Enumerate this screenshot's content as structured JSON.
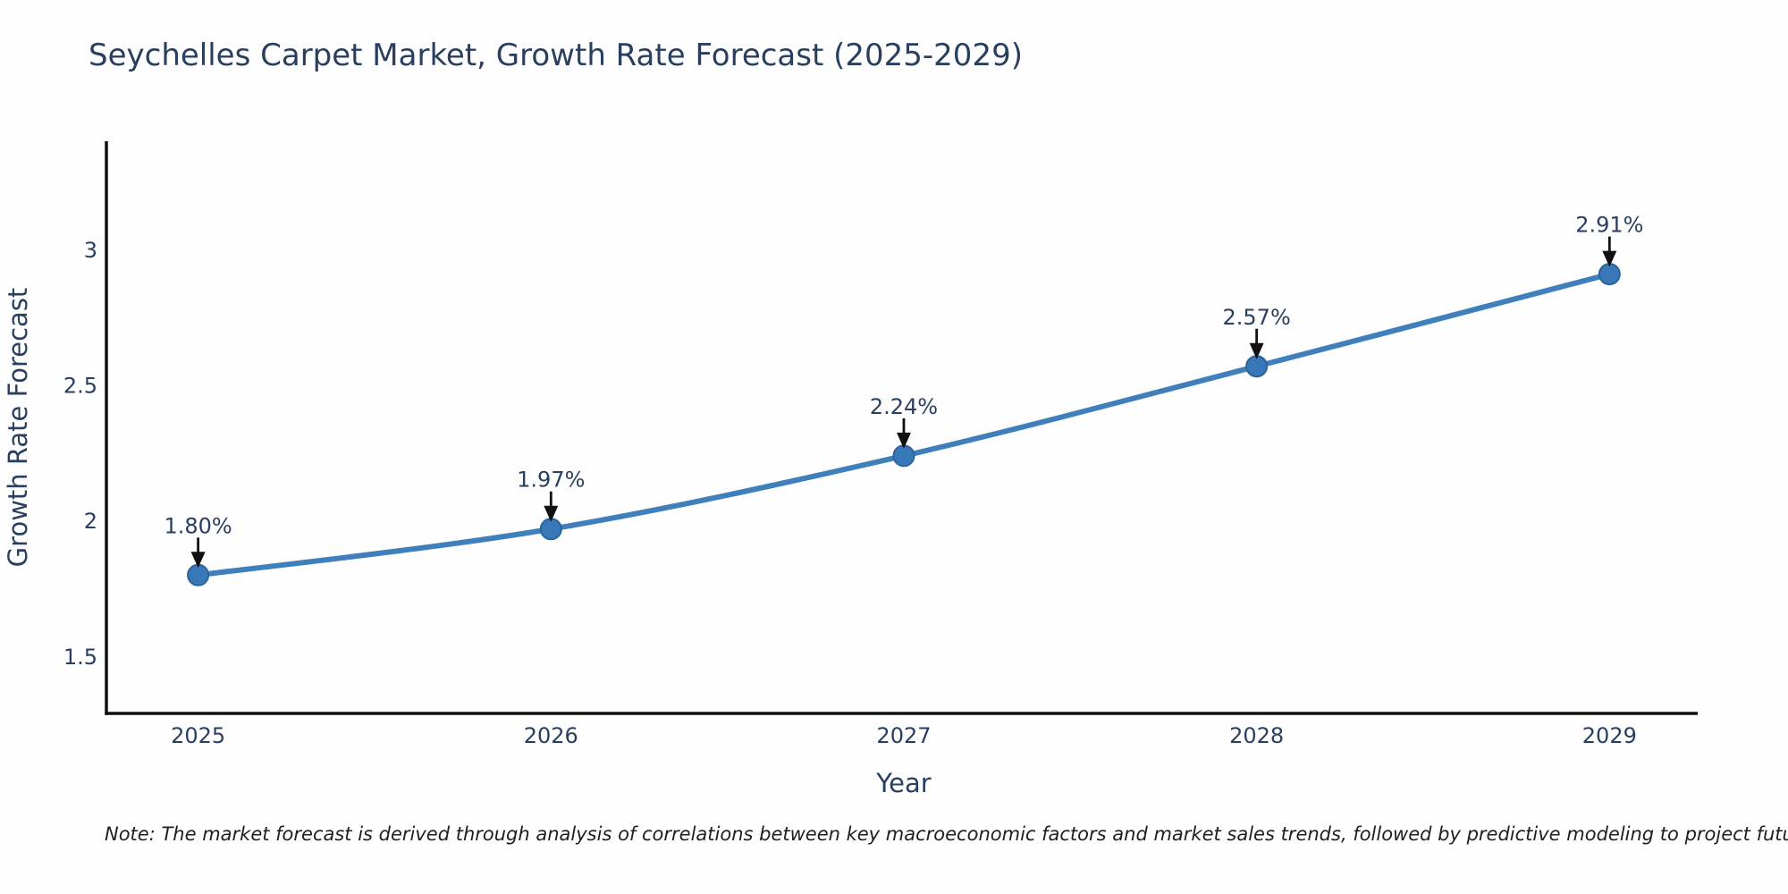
{
  "title": "Seychelles Carpet Market, Growth Rate Forecast (2025-2029)",
  "note": "Note: The market forecast is derived through analysis of correlations between key macroeconomic factors and market sales trends, followed by predictive modeling to project future sales",
  "chart_data": {
    "type": "line",
    "x": [
      2025,
      2026,
      2027,
      2028,
      2029
    ],
    "xticks": [
      "2025",
      "2026",
      "2027",
      "2028",
      "2029"
    ],
    "series": [
      {
        "name": "Growth Rate Forecast",
        "values": [
          1.8,
          1.97,
          2.24,
          2.57,
          2.91
        ]
      }
    ],
    "point_labels": [
      "1.80%",
      "1.97%",
      "2.24%",
      "2.57%",
      "2.91%"
    ],
    "title": "Seychelles Carpet Market, Growth Rate Forecast (2025-2029)",
    "xlabel": "Year",
    "ylabel": "Growth Rate Forecast",
    "yticks": [
      1.5,
      2,
      2.5,
      3
    ],
    "ytick_labels": [
      "1.5",
      "2",
      "2.5",
      "3"
    ],
    "ylim": [
      1.29,
      3.4
    ],
    "xlim": [
      2024.74,
      2029.25
    ],
    "grid": false,
    "legend": "none",
    "marker": "circle",
    "line_shape": "spline",
    "annotations": "percent value labels with black down-arrows above each data point"
  },
  "colors": {
    "line": "#3f80bc",
    "marker_fill": "#3878b8",
    "marker_edge": "#2b649c",
    "axis": "#111111",
    "arrow": "#111111",
    "text": "#2a3f5f",
    "note_text": "#1f1f1f",
    "background": "#fefefe"
  }
}
